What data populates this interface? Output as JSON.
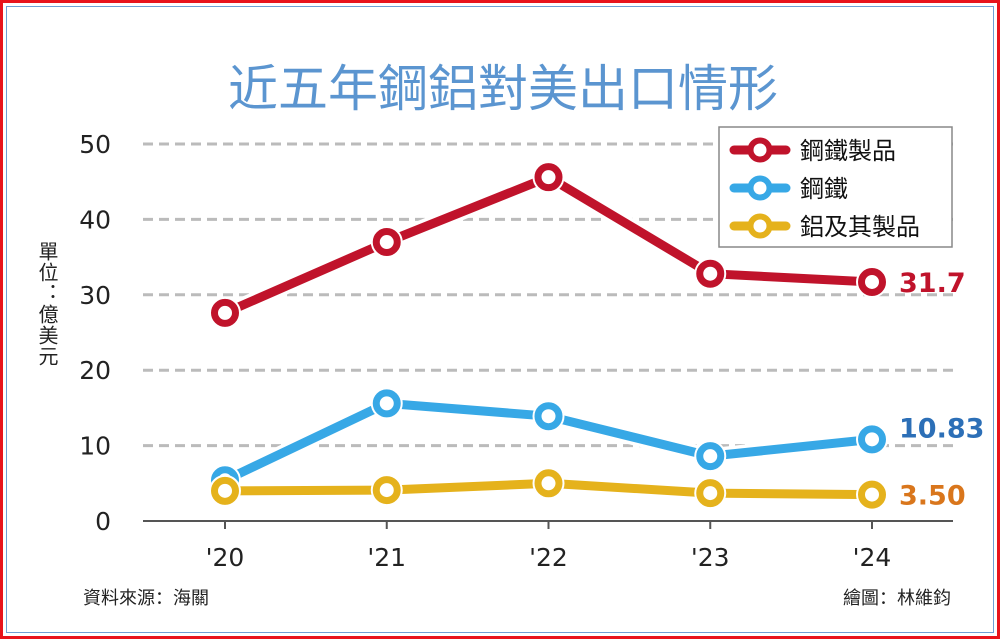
{
  "chart_data": {
    "type": "line",
    "title": "近五年鋼鋁對美出口情形",
    "ylabel": "單位：億美元",
    "xlabel": "",
    "categories": [
      "'20",
      "'21",
      "'22",
      "'23",
      "'24"
    ],
    "ylim": [
      0,
      50
    ],
    "yticks": [
      0,
      10,
      20,
      30,
      40,
      50
    ],
    "grid": true,
    "legend_position": "top-right",
    "series": [
      {
        "name": "鋼鐵製品",
        "color": "#c0132b",
        "values": [
          27.6,
          37.0,
          45.6,
          32.8,
          31.7
        ],
        "end_label": "31.7",
        "label_color": "#c0132b"
      },
      {
        "name": "鋼鐵",
        "color": "#37a8e6",
        "values": [
          5.4,
          15.6,
          13.9,
          8.6,
          10.83
        ],
        "end_label": "10.83",
        "label_color": "#2c6fb7"
      },
      {
        "name": "鋁及其製品",
        "color": "#e5b21c",
        "values": [
          4.0,
          4.1,
          5.0,
          3.7,
          3.5
        ],
        "end_label": "3.50",
        "label_color": "#d9761c"
      }
    ],
    "source": "資料來源：海關",
    "credit": "繪圖：林維鈞"
  },
  "colors": {
    "title": "#5b95d0",
    "frame": "#e8141c"
  }
}
